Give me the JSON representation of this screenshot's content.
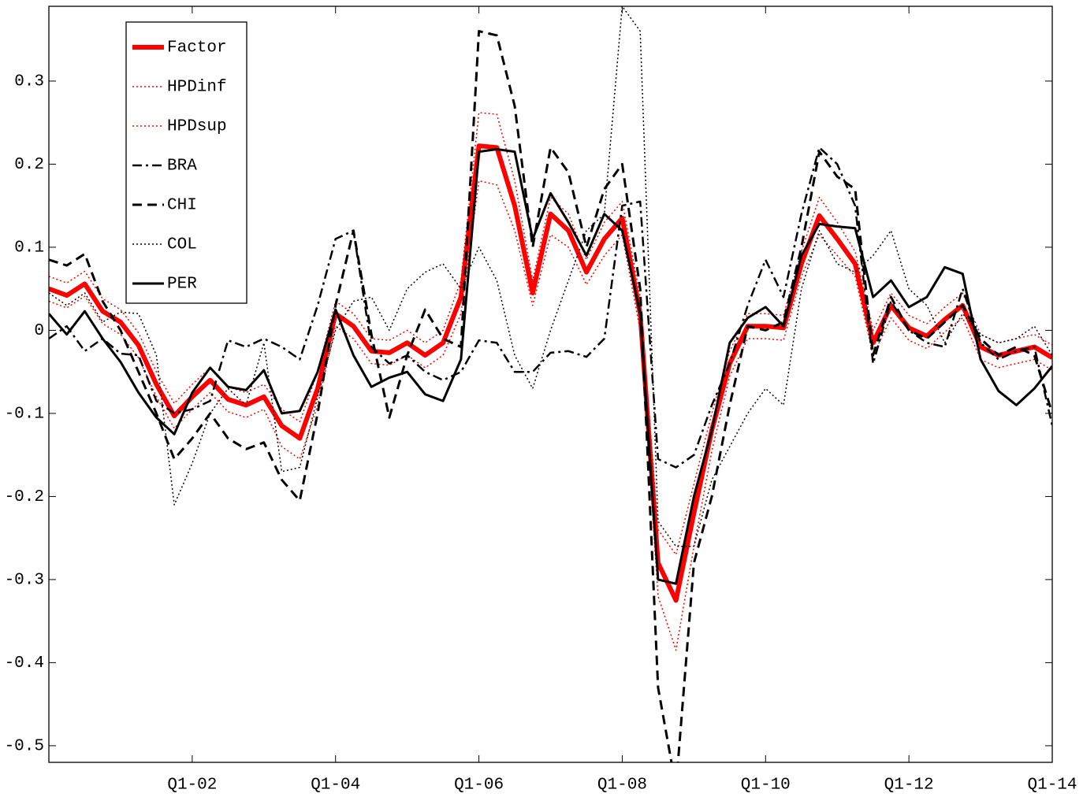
{
  "chart_data": {
    "type": "line",
    "categories": [
      null,
      null,
      null,
      null,
      null,
      null,
      null,
      null,
      "Q1-02",
      null,
      null,
      null,
      null,
      null,
      null,
      null,
      "Q1-04",
      null,
      null,
      null,
      null,
      null,
      null,
      null,
      "Q1-06",
      null,
      null,
      null,
      null,
      null,
      null,
      null,
      "Q1-08",
      null,
      null,
      null,
      null,
      null,
      null,
      null,
      "Q1-10",
      null,
      null,
      null,
      null,
      null,
      null,
      null,
      "Q1-12",
      null,
      null,
      null,
      null,
      null,
      null,
      null,
      "Q1-14"
    ],
    "ylim": [
      -0.52,
      0.39
    ],
    "yticks": [
      -0.5,
      -0.4,
      -0.3,
      -0.2,
      -0.1,
      0,
      0.1,
      0.2,
      0.3
    ],
    "legend": "top-left",
    "series": [
      {
        "name": "Factor",
        "color": "#ff0000",
        "style": "thick",
        "values": [
          0.05,
          0.042,
          0.056,
          0.023,
          0.01,
          -0.018,
          -0.065,
          -0.103,
          -0.08,
          -0.06,
          -0.083,
          -0.09,
          -0.08,
          -0.115,
          -0.13,
          -0.07,
          0.02,
          0.005,
          -0.025,
          -0.027,
          -0.015,
          -0.03,
          -0.015,
          0.04,
          0.222,
          0.22,
          0.15,
          0.045,
          0.14,
          0.12,
          0.07,
          0.11,
          0.135,
          0.02,
          -0.28,
          -0.325,
          -0.22,
          -0.12,
          -0.04,
          0.005,
          0.005,
          0.003,
          0.08,
          0.138,
          0.11,
          0.08,
          -0.015,
          0.03,
          0.003,
          -0.007,
          0.013,
          0.03,
          -0.02,
          -0.03,
          -0.025,
          -0.02,
          -0.033
        ]
      },
      {
        "name": "HPDinf",
        "color": "#ff0000",
        "style": "dotted",
        "values": [
          0.035,
          0.027,
          0.041,
          0.008,
          -0.005,
          -0.033,
          -0.08,
          -0.118,
          -0.095,
          -0.075,
          -0.098,
          -0.105,
          -0.095,
          -0.14,
          -0.155,
          -0.09,
          0.005,
          -0.01,
          -0.04,
          -0.042,
          -0.03,
          -0.045,
          -0.03,
          0.02,
          0.18,
          0.175,
          0.12,
          0.03,
          0.115,
          0.1,
          0.055,
          0.09,
          0.115,
          0.0,
          -0.32,
          -0.385,
          -0.26,
          -0.145,
          -0.055,
          -0.01,
          -0.01,
          -0.012,
          0.065,
          0.115,
          0.09,
          0.065,
          -0.03,
          0.015,
          -0.012,
          -0.022,
          -0.002,
          0.015,
          -0.035,
          -0.045,
          -0.04,
          -0.035,
          -0.048
        ]
      },
      {
        "name": "HPDsup",
        "color": "#ff0000",
        "style": "dotted",
        "values": [
          0.065,
          0.057,
          0.071,
          0.038,
          0.025,
          -0.003,
          -0.05,
          -0.088,
          -0.065,
          -0.045,
          -0.068,
          -0.075,
          -0.065,
          -0.095,
          -0.11,
          -0.05,
          0.035,
          0.02,
          -0.01,
          -0.012,
          0.0,
          -0.015,
          0.0,
          0.06,
          0.262,
          0.26,
          0.18,
          0.06,
          0.16,
          0.14,
          0.085,
          0.13,
          0.155,
          0.04,
          -0.24,
          -0.27,
          -0.185,
          -0.1,
          -0.025,
          0.02,
          0.02,
          0.018,
          0.095,
          0.16,
          0.13,
          0.095,
          0.0,
          0.045,
          0.018,
          0.008,
          0.028,
          0.045,
          -0.005,
          -0.015,
          -0.01,
          -0.005,
          -0.018
        ]
      },
      {
        "name": "BRA",
        "color": "#000000",
        "style": "dashdot",
        "values": [
          -0.01,
          0.005,
          -0.025,
          -0.01,
          -0.028,
          -0.03,
          -0.085,
          -0.1,
          -0.095,
          -0.085,
          -0.012,
          -0.02,
          -0.01,
          -0.02,
          -0.035,
          0.03,
          0.11,
          0.12,
          -0.02,
          -0.04,
          -0.03,
          -0.05,
          -0.06,
          -0.05,
          -0.012,
          -0.015,
          -0.05,
          -0.05,
          -0.027,
          -0.025,
          -0.032,
          -0.01,
          0.15,
          0.155,
          -0.155,
          -0.165,
          -0.15,
          -0.09,
          -0.04,
          0.03,
          0.085,
          0.04,
          0.14,
          0.22,
          0.2,
          0.15,
          -0.04,
          0.035,
          0.0,
          -0.015,
          -0.02,
          0.05,
          -0.015,
          -0.035,
          -0.025,
          -0.02,
          -0.115
        ]
      },
      {
        "name": "CHI",
        "color": "#000000",
        "style": "dashed",
        "values": [
          0.085,
          0.078,
          0.092,
          0.035,
          0.0,
          -0.05,
          -0.1,
          -0.155,
          -0.13,
          -0.1,
          -0.13,
          -0.143,
          -0.135,
          -0.18,
          -0.205,
          -0.1,
          0.03,
          0.12,
          -0.005,
          -0.105,
          -0.03,
          0.025,
          -0.01,
          -0.02,
          0.36,
          0.355,
          0.27,
          0.1,
          0.22,
          0.19,
          0.1,
          0.17,
          0.2,
          0.05,
          -0.43,
          -0.55,
          -0.28,
          -0.2,
          -0.09,
          0.005,
          0.0,
          0.01,
          0.1,
          0.215,
          0.185,
          0.17,
          -0.03,
          0.04,
          0.0,
          -0.01,
          0.01,
          0.03,
          -0.01,
          -0.03,
          -0.02,
          -0.03,
          -0.1
        ]
      },
      {
        "name": "COL",
        "color": "#000000",
        "style": "dotted",
        "values": [
          0.045,
          0.03,
          0.045,
          0.01,
          0.022,
          0.02,
          -0.03,
          -0.21,
          -0.16,
          -0.1,
          -0.07,
          -0.09,
          -0.015,
          -0.17,
          -0.165,
          -0.08,
          0.0,
          0.035,
          0.04,
          0.0,
          0.05,
          0.07,
          0.08,
          0.05,
          0.1,
          0.06,
          -0.03,
          -0.07,
          0.0,
          0.06,
          0.12,
          0.14,
          0.39,
          0.36,
          -0.23,
          -0.26,
          -0.26,
          -0.18,
          -0.14,
          -0.1,
          -0.07,
          -0.09,
          0.05,
          0.12,
          0.08,
          0.07,
          0.09,
          0.12,
          0.05,
          0.03,
          -0.015,
          0.02,
          -0.005,
          -0.015,
          -0.01,
          0.005,
          -0.03
        ]
      },
      {
        "name": "PER",
        "color": "#000000",
        "style": "solid",
        "values": [
          0.02,
          -0.005,
          0.023,
          -0.01,
          -0.038,
          -0.075,
          -0.105,
          -0.125,
          -0.075,
          -0.045,
          -0.068,
          -0.072,
          -0.048,
          -0.1,
          -0.097,
          -0.05,
          0.025,
          -0.03,
          -0.068,
          -0.057,
          -0.05,
          -0.077,
          -0.085,
          -0.035,
          0.215,
          0.218,
          0.215,
          0.11,
          0.165,
          0.13,
          0.09,
          0.14,
          0.12,
          0.02,
          -0.3,
          -0.305,
          -0.2,
          -0.12,
          -0.015,
          0.015,
          0.028,
          0.005,
          0.09,
          0.128,
          0.125,
          0.123,
          0.04,
          0.06,
          0.028,
          0.04,
          0.076,
          0.068,
          -0.035,
          -0.073,
          -0.09,
          -0.07,
          -0.043
        ]
      }
    ]
  }
}
